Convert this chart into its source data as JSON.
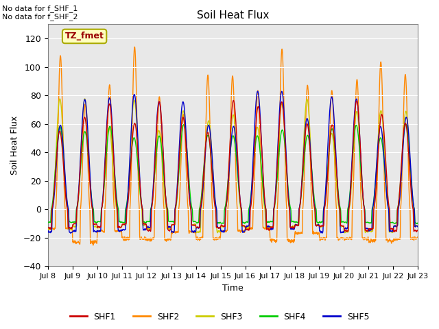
{
  "title": "Soil Heat Flux",
  "xlabel": "Time",
  "ylabel": "Soil Heat Flux",
  "ylim": [
    -40,
    130
  ],
  "yticks": [
    -40,
    -20,
    0,
    20,
    40,
    60,
    80,
    100,
    120
  ],
  "no_data_text_1": "No data for f_SHF_1",
  "no_data_text_2": "No data for f_SHF_2",
  "annotation_text": "TZ_fmet",
  "annotation_box_color": "#ffffc0",
  "annotation_text_color": "#990000",
  "bg_color": "#e8e8e8",
  "colors": {
    "SHF1": "#cc0000",
    "SHF2": "#ff8800",
    "SHF3": "#cccc00",
    "SHF4": "#00cc00",
    "SHF5": "#0000cc"
  },
  "n_days": 15,
  "start_day": 8,
  "ppd": 288
}
